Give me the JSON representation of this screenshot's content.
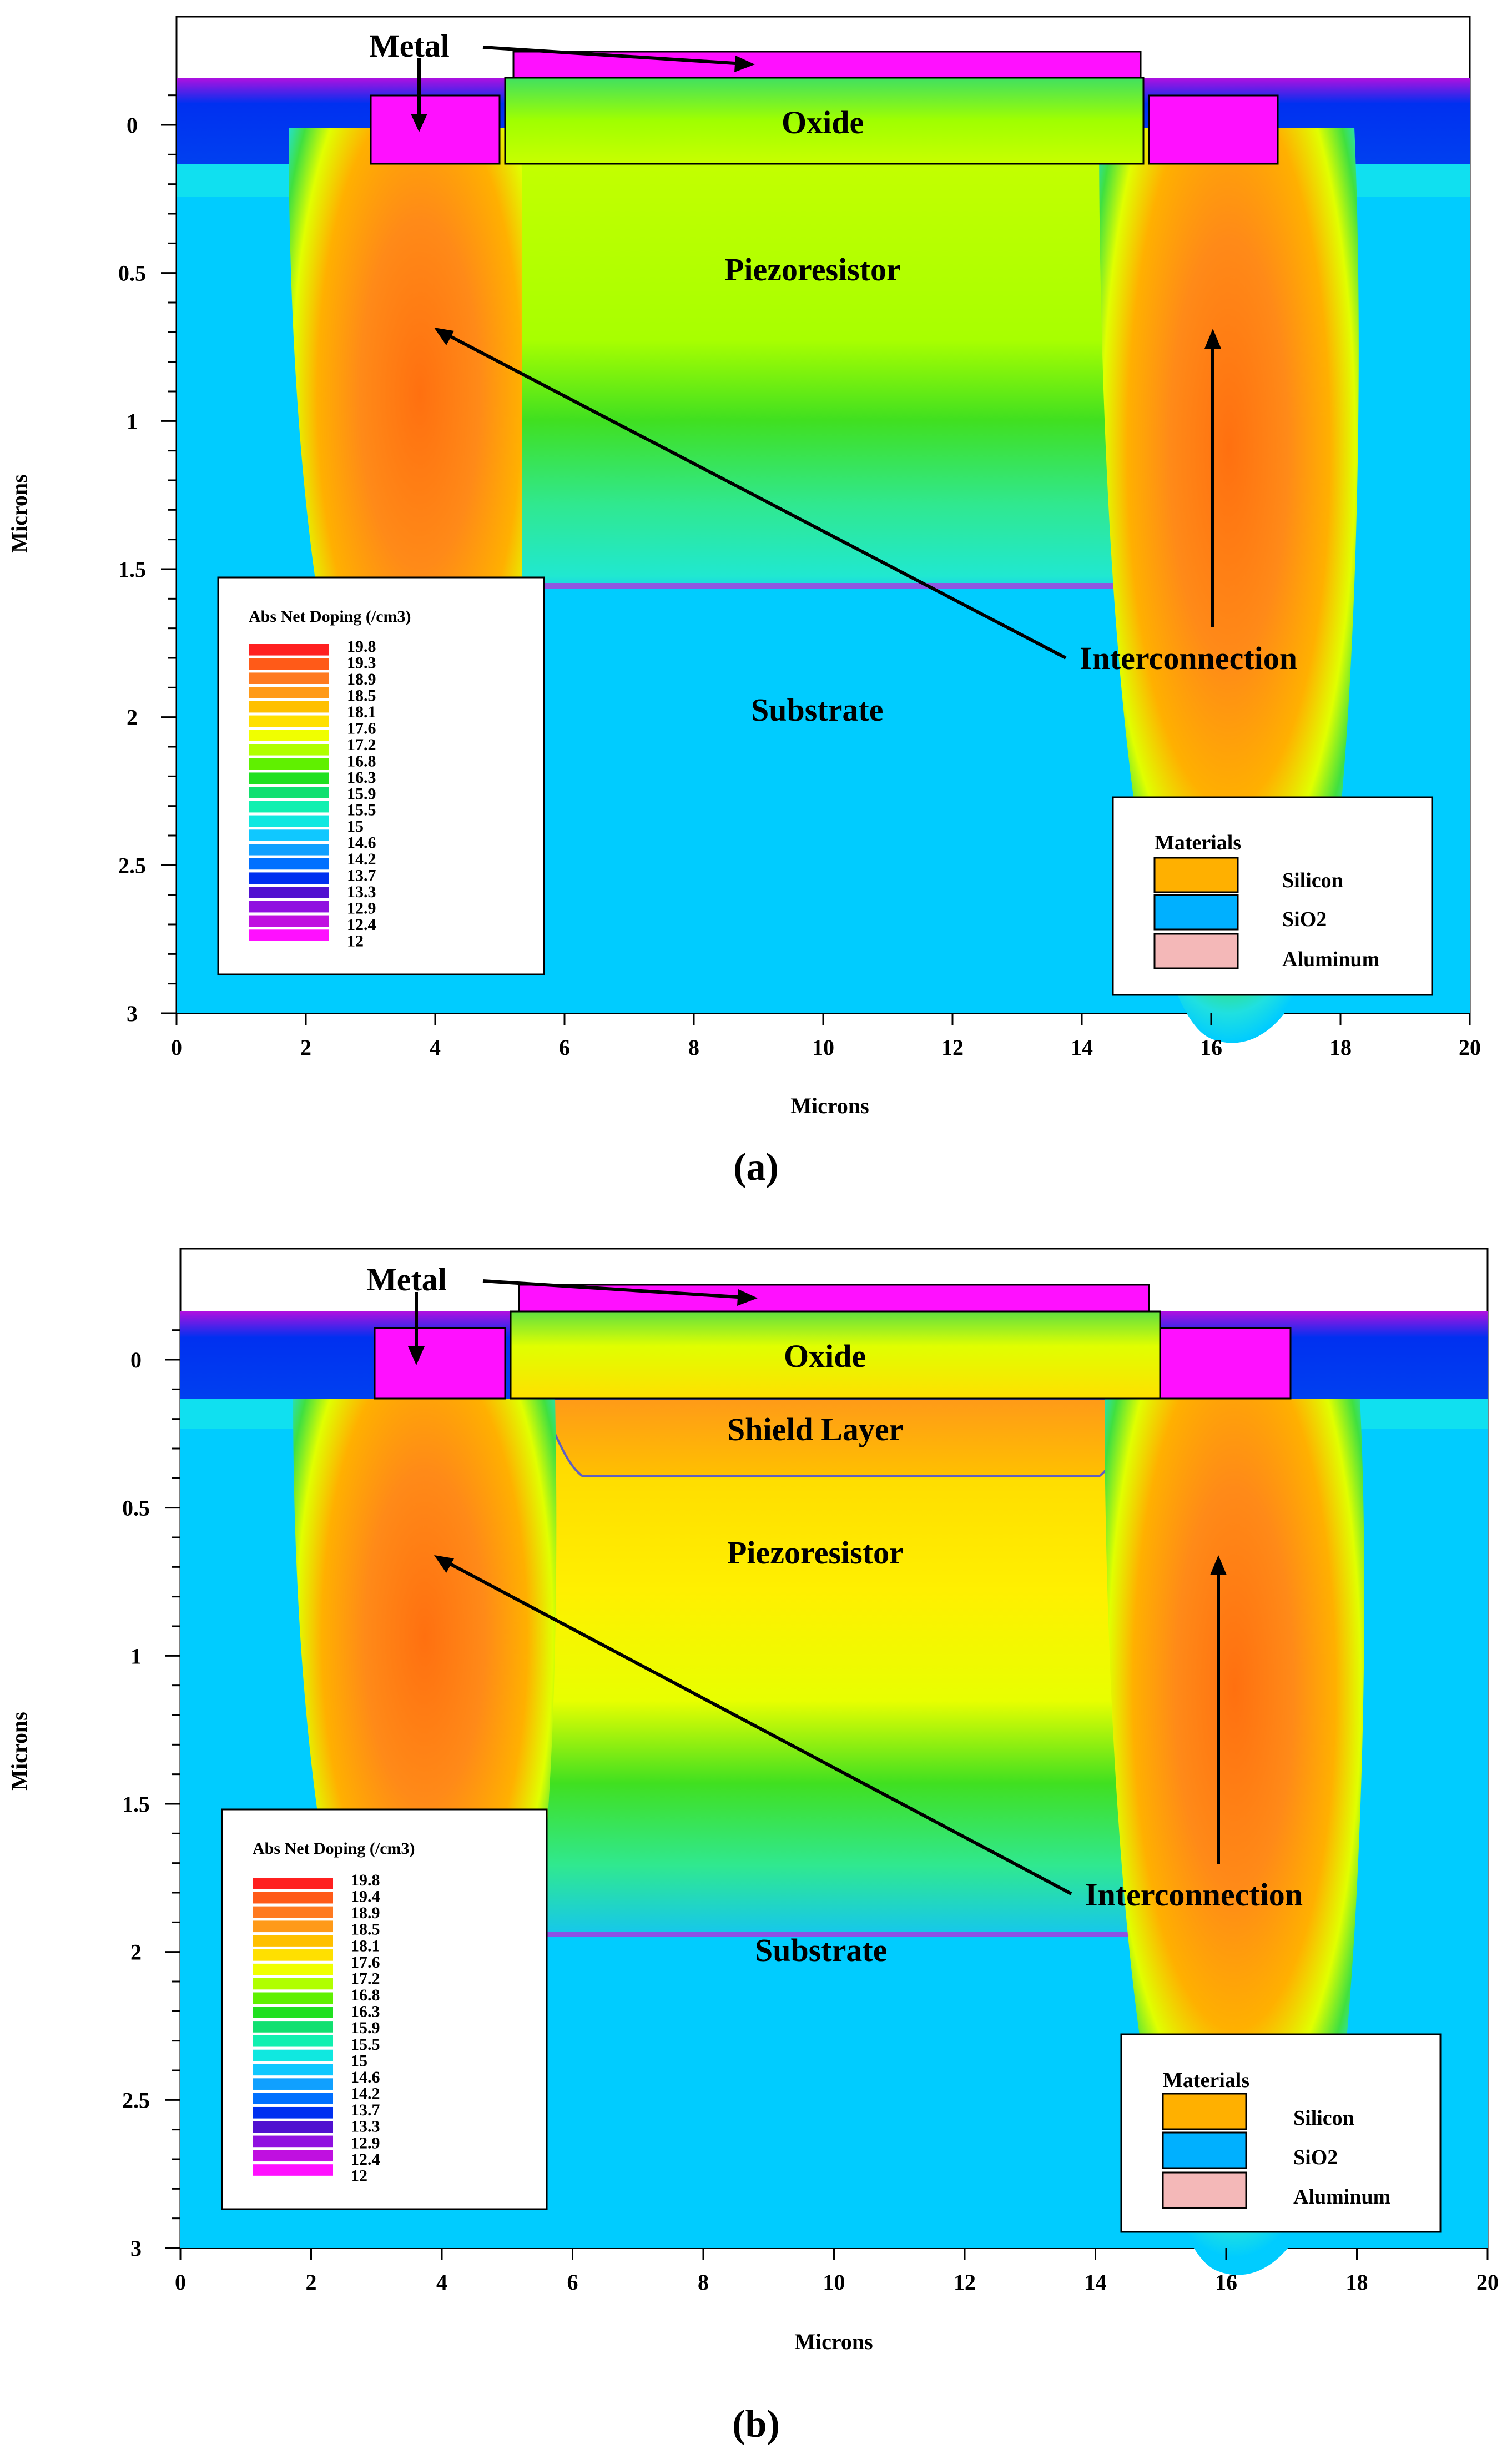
{
  "panels": [
    {
      "id": "a",
      "caption": "(a)",
      "labels": {
        "metal": "Metal",
        "oxide": "Oxide",
        "piezoresistor": "Piezoresistor",
        "interconnection": "Interconnection",
        "substrate": "Substrate"
      },
      "legend": {
        "title": "Abs Net Doping (/cm3)",
        "entries": [
          "19.8",
          "19.3",
          "18.9",
          "18.5",
          "18.1",
          "17.6",
          "17.2",
          "16.8",
          "16.3",
          "15.9",
          "15.5",
          "15",
          "14.6",
          "14.2",
          "13.7",
          "13.3",
          "12.9",
          "12.4",
          "12"
        ]
      },
      "materials": {
        "title": "Materials",
        "items": [
          {
            "name": "Silicon",
            "color": "#ffb000"
          },
          {
            "name": "SiO2",
            "color": "#00b0ff"
          },
          {
            "name": "Aluminum",
            "color": "#f4b8b8"
          }
        ]
      },
      "x_axis": {
        "label": "Microns",
        "ticks": [
          "0",
          "2",
          "4",
          "6",
          "8",
          "10",
          "12",
          "14",
          "16",
          "18",
          "20"
        ]
      },
      "y_axis": {
        "label": "Microns",
        "ticks": [
          "0",
          "0.5",
          "1",
          "1.5",
          "2",
          "2.5",
          "3"
        ]
      }
    },
    {
      "id": "b",
      "caption": "(b)",
      "labels": {
        "metal": "Metal",
        "oxide": "Oxide",
        "shield": "Shield Layer",
        "piezoresistor": "Piezoresistor",
        "interconnection": "Interconnection",
        "substrate": "Substrate"
      },
      "legend": {
        "title": "Abs Net Doping (/cm3)",
        "entries": [
          "19.8",
          "19.4",
          "18.9",
          "18.5",
          "18.1",
          "17.6",
          "17.2",
          "16.8",
          "16.3",
          "15.9",
          "15.5",
          "15",
          "14.6",
          "14.2",
          "13.7",
          "13.3",
          "12.9",
          "12.4",
          "12"
        ]
      },
      "materials": {
        "title": "Materials",
        "items": [
          {
            "name": "Silicon",
            "color": "#ffb000"
          },
          {
            "name": "SiO2",
            "color": "#00b0ff"
          },
          {
            "name": "Aluminum",
            "color": "#f4b8b8"
          }
        ]
      },
      "x_axis": {
        "label": "Microns",
        "ticks": [
          "0",
          "2",
          "4",
          "6",
          "8",
          "10",
          "12",
          "14",
          "16",
          "18",
          "20"
        ]
      },
      "y_axis": {
        "label": "Microns",
        "ticks": [
          "0",
          "0.5",
          "1",
          "1.5",
          "2",
          "2.5",
          "3"
        ]
      }
    }
  ],
  "colors": {
    "substrate": "#00ccff",
    "legend_swatches": [
      "#ff2020",
      "#ff5a18",
      "#ff7a20",
      "#ff9a18",
      "#ffc000",
      "#ffe000",
      "#f0ff00",
      "#b0ff00",
      "#60f000",
      "#20e020",
      "#10e070",
      "#10f0b0",
      "#10e8e0",
      "#10c8ff",
      "#10a0ff",
      "#0070ff",
      "#0030f0",
      "#5010d0",
      "#9010e0",
      "#c010e0",
      "#ff10ff"
    ]
  }
}
